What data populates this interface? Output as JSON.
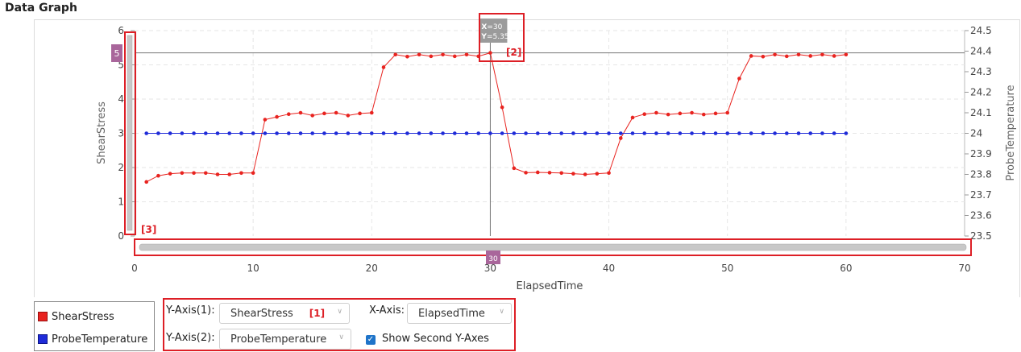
{
  "page": {
    "title": "Data Graph"
  },
  "chart_data": {
    "type": "line",
    "xlabel": "ElapsedTime",
    "ylabel_left": "ShearStress",
    "ylabel_right": "ProbeTemperature",
    "xlim": [
      0,
      70
    ],
    "ylim_left": [
      0,
      6
    ],
    "ylim_right": [
      23.5,
      24.5
    ],
    "x_ticks": [
      "0",
      "10",
      "20",
      "30",
      "40",
      "50",
      "60",
      "70"
    ],
    "y_left_ticks": [
      "0",
      "1",
      "2",
      "3",
      "4",
      "5",
      "6"
    ],
    "y_right_ticks": [
      "23.5",
      "23.6",
      "23.7",
      "23.8",
      "23.9",
      "24",
      "24.1",
      "24.2",
      "24.3",
      "24.4",
      "24.5"
    ],
    "grid": true,
    "series": [
      {
        "name": "ShearStress",
        "axis": "left",
        "color": "#e8231f",
        "x": [
          1,
          2,
          3,
          4,
          5,
          6,
          7,
          8,
          9,
          10,
          11,
          12,
          13,
          14,
          15,
          16,
          17,
          18,
          19,
          20,
          21,
          22,
          23,
          24,
          25,
          26,
          27,
          28,
          29,
          30,
          31,
          32,
          33,
          34,
          35,
          36,
          37,
          38,
          39,
          40,
          41,
          42,
          43,
          44,
          45,
          46,
          47,
          48,
          49,
          50,
          51,
          52,
          53,
          54,
          55,
          56,
          57,
          58,
          59,
          60
        ],
        "values": [
          1.58,
          1.76,
          1.82,
          1.84,
          1.84,
          1.84,
          1.8,
          1.8,
          1.84,
          1.84,
          3.4,
          3.48,
          3.56,
          3.6,
          3.52,
          3.58,
          3.6,
          3.52,
          3.58,
          3.6,
          4.93,
          5.3,
          5.24,
          5.3,
          5.25,
          5.3,
          5.25,
          5.3,
          5.25,
          5.35,
          3.76,
          1.98,
          1.85,
          1.86,
          1.85,
          1.84,
          1.82,
          1.8,
          1.82,
          1.84,
          2.86,
          3.46,
          3.56,
          3.6,
          3.55,
          3.58,
          3.6,
          3.55,
          3.58,
          3.6,
          4.6,
          5.26,
          5.24,
          5.3,
          5.25,
          5.3,
          5.26,
          5.3,
          5.26,
          5.3
        ]
      },
      {
        "name": "ProbeTemperature",
        "axis": "right",
        "color": "#1f2bd8",
        "x": [
          1,
          2,
          3,
          4,
          5,
          6,
          7,
          8,
          9,
          10,
          11,
          12,
          13,
          14,
          15,
          16,
          17,
          18,
          19,
          20,
          21,
          22,
          23,
          24,
          25,
          26,
          27,
          28,
          29,
          30,
          31,
          32,
          33,
          34,
          35,
          36,
          37,
          38,
          39,
          40,
          41,
          42,
          43,
          44,
          45,
          46,
          47,
          48,
          49,
          50,
          51,
          52,
          53,
          54,
          55,
          56,
          57,
          58,
          59,
          60
        ],
        "values": [
          24,
          24,
          24,
          24,
          24,
          24,
          24,
          24,
          24,
          24,
          24,
          24,
          24,
          24,
          24,
          24,
          24,
          24,
          24,
          24,
          24,
          24,
          24,
          24,
          24,
          24,
          24,
          24,
          24,
          24,
          24,
          24,
          24,
          24,
          24,
          24,
          24,
          24,
          24,
          24,
          24,
          24,
          24,
          24,
          24,
          24,
          24,
          24,
          24,
          24,
          24,
          24,
          24,
          24,
          24,
          24,
          24,
          24,
          24,
          24
        ]
      }
    ],
    "crosshair": {
      "x": 30,
      "y": 5.35,
      "x_label": "X",
      "x_text": "=30",
      "y_label": "Y",
      "y_text": "=5.35"
    },
    "y_handle_label": "5",
    "x_handle_label": "30",
    "annotations": [
      "[2]",
      "[3]"
    ]
  },
  "legend": [
    {
      "label": "ShearStress",
      "color": "#e8231f"
    },
    {
      "label": "ProbeTemperature",
      "color": "#1f2bd8"
    }
  ],
  "controls": {
    "y_axis1_label": "Y-Axis(1):",
    "y_axis1_value": "ShearStress",
    "y_axis1_tag": "[1]",
    "x_axis_label": "X-Axis:",
    "x_axis_value": "ElapsedTime",
    "y_axis2_label": "Y-Axis(2):",
    "y_axis2_value": "ProbeTemperature",
    "show_second_label": "Show Second Y-Axes",
    "show_second_checked": true
  }
}
